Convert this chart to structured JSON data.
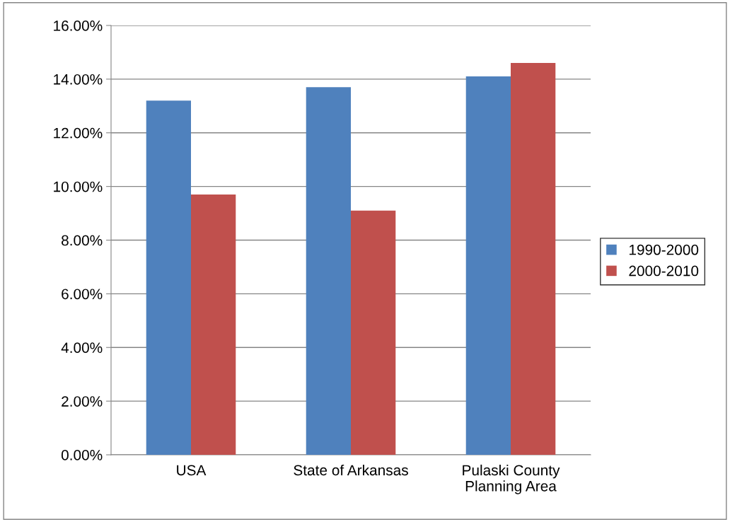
{
  "chart_data": {
    "type": "bar",
    "categories": [
      "USA",
      "State of Arkansas",
      "Pulaski County\nPlanning Area"
    ],
    "series": [
      {
        "name": "1990-2000",
        "color": "#4f81bd",
        "values": [
          13.2,
          13.7,
          14.1
        ]
      },
      {
        "name": "2000-2010",
        "color": "#c0504d",
        "values": [
          9.7,
          9.1,
          14.6
        ]
      }
    ],
    "ylim": [
      0,
      16
    ],
    "yticks": [
      {
        "value": 0,
        "label": "0.00%"
      },
      {
        "value": 2,
        "label": "2.00%"
      },
      {
        "value": 4,
        "label": "4.00%"
      },
      {
        "value": 6,
        "label": "6.00%"
      },
      {
        "value": 8,
        "label": "8.00%"
      },
      {
        "value": 10,
        "label": "10.00%"
      },
      {
        "value": 12,
        "label": "12.00%"
      },
      {
        "value": 14,
        "label": "14.00%"
      },
      {
        "value": 16,
        "label": "16.00%"
      }
    ],
    "grid": "y",
    "legend": "right"
  }
}
